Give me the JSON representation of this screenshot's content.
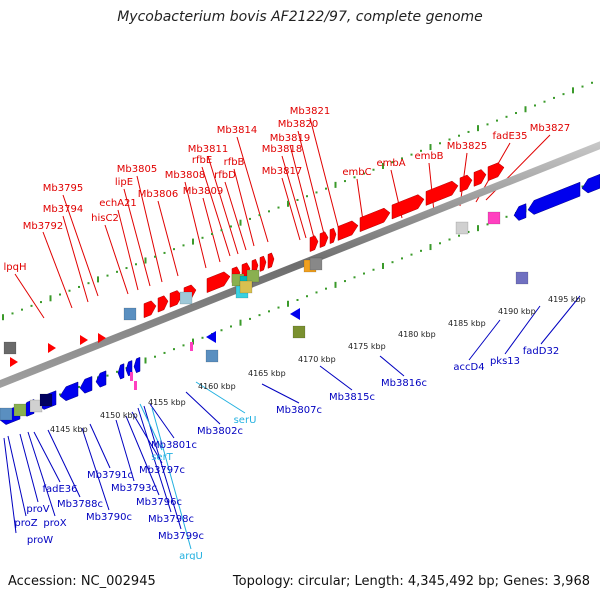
{
  "header": {
    "title": "Mycobacterium bovis AF2122/97, complete genome"
  },
  "footer": {
    "accession": "Accession: NC_002945",
    "summary": "Topology: circular; Length: 4,345,492 bp; Genes: 3,968"
  },
  "colors": {
    "forward_label": "#e00000",
    "reverse_label": "#0000c0",
    "rna_label": "#22b0e0",
    "forward_gene": "#ff0000",
    "reverse_gene": "#0000ee",
    "backbone": "#7a7a7a",
    "tick_dot": "#3a9a2a"
  },
  "ticks": [
    "4145 kbp",
    "4150 kbp",
    "4155 kbp",
    "4160 kbp",
    "4165 kbp",
    "4170 kbp",
    "4175 kbp",
    "4180 kbp",
    "4185 kbp",
    "4190 kbp",
    "4195 kbp"
  ],
  "forward_labels": [
    "lpqH",
    "Mb3792",
    "Mb3794",
    "Mb3795",
    "hisC2",
    "echA21",
    "lipE",
    "Mb3805",
    "Mb3806",
    "Mb3808",
    "Mb3809",
    "rfbE",
    "Mb3811",
    "rfbD",
    "rfbB",
    "Mb3814",
    "Mb3817",
    "Mb3818",
    "Mb3819",
    "Mb3820",
    "Mb3821",
    "embC",
    "embA",
    "embB",
    "Mb3825",
    "fadE35",
    "Mb3827"
  ],
  "reverse_labels": [
    "proW",
    "proZ",
    "proV",
    "proX",
    "fadE36",
    "Mb3788c",
    "Mb3790c",
    "Mb3791c",
    "Mb3793c",
    "Mb3796c",
    "Mb3797c",
    "Mb3798c",
    "Mb3799c",
    "Mb3801c",
    "Mb3802c",
    "Mb3807c",
    "Mb3815c",
    "Mb3816c",
    "accD4",
    "pks13",
    "fadD32"
  ],
  "rna_labels": [
    "argU",
    "serT",
    "serU"
  ]
}
